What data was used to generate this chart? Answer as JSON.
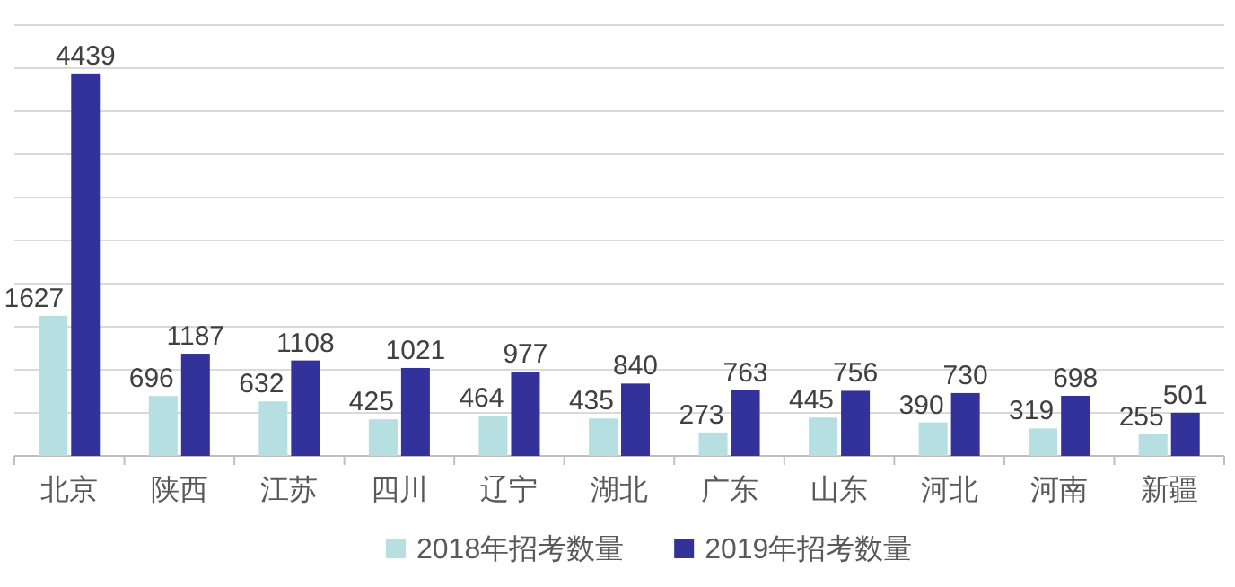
{
  "chart_data": {
    "type": "bar",
    "categories": [
      "北京",
      "陕西",
      "江苏",
      "四川",
      "辽宁",
      "湖北",
      "广东",
      "山东",
      "河北",
      "河南",
      "新疆"
    ],
    "series": [
      {
        "name": "2018年招考数量",
        "color": "#b5dfe1",
        "values": [
          1627,
          696,
          632,
          425,
          464,
          435,
          273,
          445,
          390,
          319,
          255
        ]
      },
      {
        "name": "2019年招考数量",
        "color": "#33329a",
        "values": [
          4439,
          1187,
          1108,
          1021,
          977,
          840,
          763,
          756,
          730,
          698,
          501
        ]
      }
    ],
    "ylim": [
      0,
      5000
    ],
    "yticks": [
      {
        "value": 0,
        "label": null
      },
      {
        "value": 500,
        "label": null
      },
      {
        "value": 1000,
        "label": null
      },
      {
        "value": 1500,
        "label": null
      },
      {
        "value": 2000,
        "label": null
      },
      {
        "value": 2500,
        "label": null
      },
      {
        "value": 3000,
        "label": null
      },
      {
        "value": 3500,
        "label": null
      },
      {
        "value": 4000,
        "label": null
      },
      {
        "value": 4500,
        "label": null
      },
      {
        "value": 5000,
        "label": null
      }
    ],
    "tick_labels": "x",
    "grid": "y",
    "data_labels": true,
    "legend": "bottom"
  }
}
